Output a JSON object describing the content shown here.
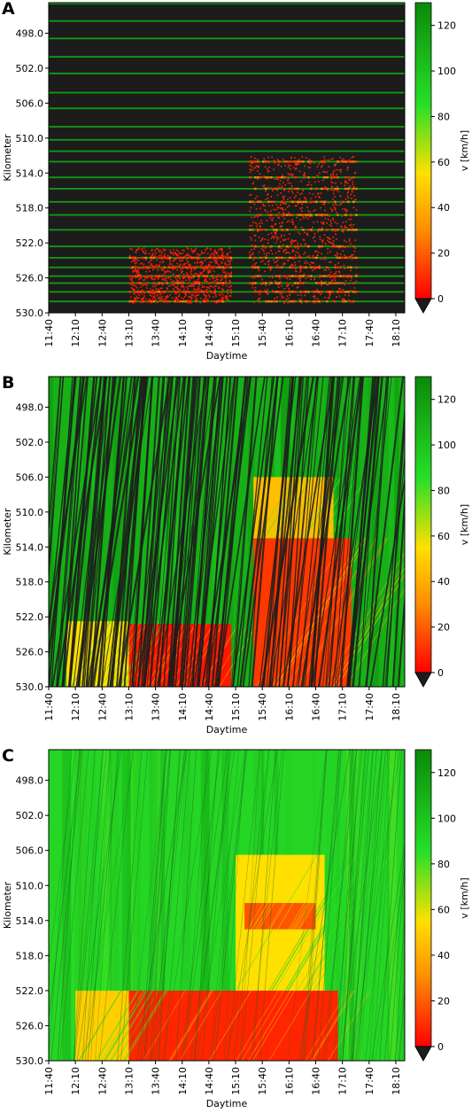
{
  "figure": {
    "colorbar": {
      "label": "v [km/h]",
      "ticks": [
        0,
        20,
        40,
        60,
        80,
        100,
        120
      ],
      "range": [
        0,
        130
      ],
      "extend_min": true,
      "colors": {
        "stops": [
          {
            "v": 0,
            "color": "#ff0000"
          },
          {
            "v": 30,
            "color": "#ff8c00"
          },
          {
            "v": 55,
            "color": "#ffe000"
          },
          {
            "v": 85,
            "color": "#28e028"
          },
          {
            "v": 130,
            "color": "#0a8a0a"
          }
        ],
        "background": "#1c1c1c"
      }
    }
  },
  "chart_data": [
    {
      "type": "heatmap",
      "panel": "A",
      "xlabel": "Daytime",
      "ylabel": "Kilometer",
      "x_ticks": [
        "11:40",
        "12:10",
        "12:40",
        "13:10",
        "13:40",
        "14:10",
        "14:40",
        "15:10",
        "15:40",
        "16:10",
        "16:40",
        "17:10",
        "17:40",
        "18:10"
      ],
      "y_ticks": [
        "498.0",
        "502.0",
        "506.0",
        "510.0",
        "514.0",
        "518.0",
        "522.0",
        "526.0",
        "530.0"
      ],
      "xlim": [
        "11:40",
        "18:20"
      ],
      "ylim": [
        494.5,
        530.0
      ],
      "y_inverted": true,
      "free_flow_speed": 120,
      "detector_km": [
        494.6,
        496.6,
        498.6,
        500.7,
        502.6,
        504.8,
        506.6,
        508.7,
        510.2,
        511.5,
        512.7,
        514.5,
        515.8,
        517.3,
        518.8,
        520.5,
        522.4,
        523.7,
        524.8,
        525.8,
        526.6,
        527.6,
        528.7
      ],
      "congestion_regions": [
        {
          "t_start": "13:10",
          "t_end": "15:05",
          "km_start": 522.5,
          "km_end": 528.8,
          "speed": 6
        },
        {
          "t_start": "15:25",
          "t_end": "17:25",
          "km_start": 512.0,
          "km_end": 528.8,
          "speed": 8
        }
      ]
    },
    {
      "type": "heatmap",
      "panel": "B",
      "xlabel": "Daytime",
      "ylabel": "Kilometer",
      "x_ticks": [
        "11:40",
        "12:10",
        "12:40",
        "13:10",
        "13:40",
        "14:10",
        "14:40",
        "15:10",
        "15:40",
        "16:10",
        "16:40",
        "17:10",
        "17:40",
        "18:10"
      ],
      "y_ticks": [
        "498.0",
        "502.0",
        "506.0",
        "510.0",
        "514.0",
        "518.0",
        "522.0",
        "526.0",
        "530.0"
      ],
      "xlim": [
        "11:40",
        "18:20"
      ],
      "ylim": [
        494.5,
        530.0
      ],
      "y_inverted": true,
      "free_flow_speed": 110,
      "congestion_regions": [
        {
          "t_start": "13:10",
          "t_end": "15:05",
          "km_start": 522.8,
          "km_end": 530.0,
          "speed": 5
        },
        {
          "t_start": "15:30",
          "t_end": "17:20",
          "km_start": 513.0,
          "km_end": 530.0,
          "speed": 12
        },
        {
          "t_start": "15:30",
          "t_end": "17:00",
          "km_start": 506.0,
          "km_end": 513.0,
          "speed": 45
        },
        {
          "t_start": "12:00",
          "t_end": "13:10",
          "km_start": 522.5,
          "km_end": 530.0,
          "speed": 55
        }
      ]
    },
    {
      "type": "heatmap",
      "panel": "C",
      "xlabel": "Daytime",
      "ylabel": "Kilometer",
      "x_ticks": [
        "11:40",
        "12:10",
        "12:40",
        "13:10",
        "13:40",
        "14:10",
        "14:40",
        "15:10",
        "15:40",
        "16:10",
        "16:40",
        "17:10",
        "17:40",
        "18:10"
      ],
      "y_ticks": [
        "498.0",
        "502.0",
        "506.0",
        "510.0",
        "514.0",
        "518.0",
        "522.0",
        "526.0",
        "530.0"
      ],
      "xlim": [
        "11:40",
        "18:20"
      ],
      "ylim": [
        494.5,
        530.0
      ],
      "y_inverted": true,
      "free_flow_speed": 90,
      "congestion_regions": [
        {
          "t_start": "13:10",
          "t_end": "17:05",
          "km_start": 522.0,
          "km_end": 530.0,
          "speed": 8
        },
        {
          "t_start": "12:10",
          "t_end": "13:10",
          "km_start": 522.0,
          "km_end": 530.0,
          "speed": 50
        },
        {
          "t_start": "15:10",
          "t_end": "16:50",
          "km_start": 506.5,
          "km_end": 522.0,
          "speed": 55
        },
        {
          "t_start": "15:20",
          "t_end": "16:40",
          "km_start": 512.0,
          "km_end": 515.0,
          "speed": 18
        }
      ]
    }
  ]
}
